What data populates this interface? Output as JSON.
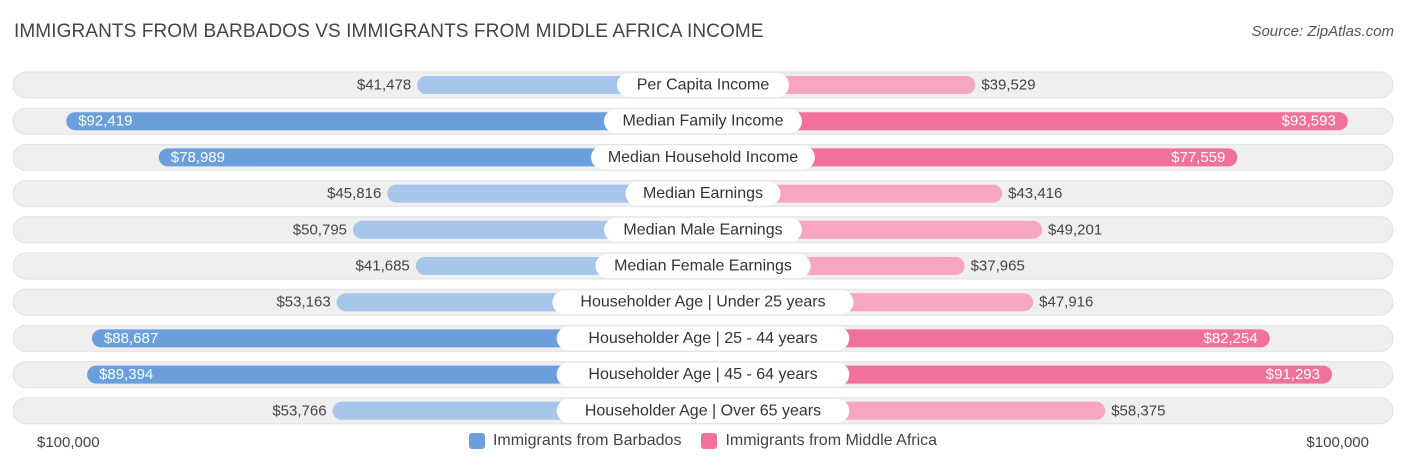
{
  "title": "IMMIGRANTS FROM BARBADOS VS IMMIGRANTS FROM MIDDLE AFRICA INCOME",
  "source": "Source: ZipAtlas.com",
  "axis": {
    "left_label": "$100,000",
    "right_label": "$100,000"
  },
  "legend": [
    {
      "name": "Immigrants from Barbados",
      "color": "#6a9fdc"
    },
    {
      "name": "Immigrants from Middle Africa",
      "color": "#f07199"
    }
  ],
  "colors": {
    "left_dark": "#6a9fdc",
    "left_light": "#a6c5ea",
    "right_dark": "#f07199",
    "right_light": "#f6a6c0",
    "row_bg": "#efefef"
  },
  "chart_data": {
    "type": "bar",
    "orientation": "diverging-horizontal",
    "title": "IMMIGRANTS FROM BARBADOS VS IMMIGRANTS FROM MIDDLE AFRICA INCOME",
    "xlim": [
      0,
      100000
    ],
    "categories": [
      "Per Capita Income",
      "Median Family Income",
      "Median Household Income",
      "Median Earnings",
      "Median Male Earnings",
      "Median Female Earnings",
      "Householder Age | Under 25 years",
      "Householder Age | 25 - 44 years",
      "Householder Age | 45 - 64 years",
      "Householder Age | Over 65 years"
    ],
    "series": [
      {
        "name": "Immigrants from Barbados",
        "values": [
          41478,
          92419,
          78989,
          45816,
          50795,
          41685,
          53163,
          88687,
          89394,
          53766
        ],
        "labels": [
          "$41,478",
          "$92,419",
          "$78,989",
          "$45,816",
          "$50,795",
          "$41,685",
          "$53,163",
          "$88,687",
          "$89,394",
          "$53,766"
        ]
      },
      {
        "name": "Immigrants from Middle Africa",
        "values": [
          39529,
          93593,
          77559,
          43416,
          49201,
          37965,
          47916,
          82254,
          91293,
          58375
        ],
        "labels": [
          "$39,529",
          "$93,593",
          "$77,559",
          "$43,416",
          "$49,201",
          "$37,965",
          "$47,916",
          "$82,254",
          "$91,293",
          "$58,375"
        ]
      }
    ]
  }
}
